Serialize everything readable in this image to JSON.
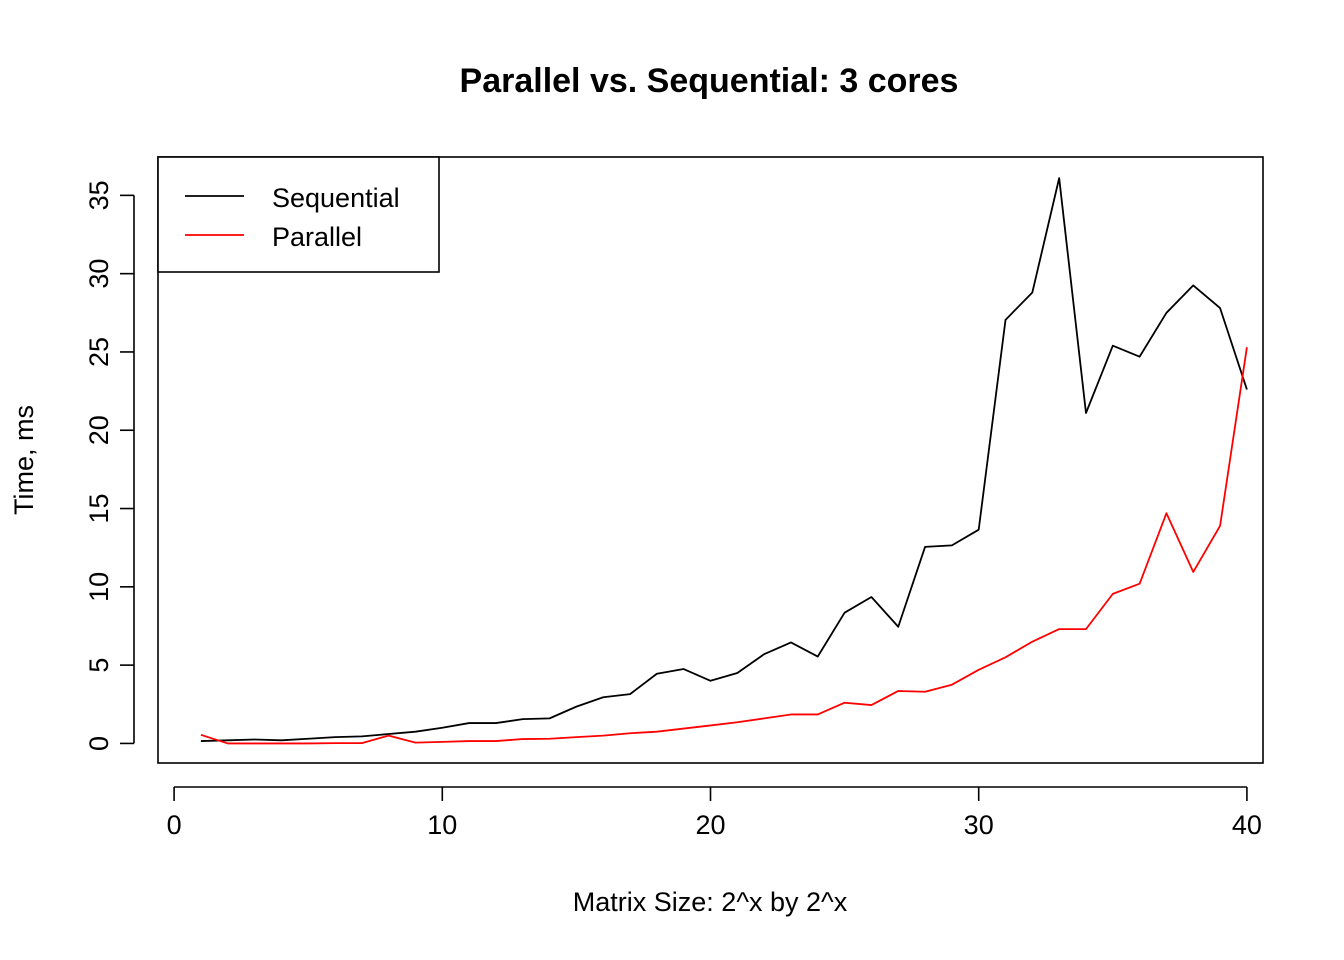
{
  "chart_data": {
    "type": "line",
    "title": "Parallel vs. Sequential: 3 cores",
    "xlabel": "Matrix Size: 2^x by 2^x",
    "ylabel": "Time, ms",
    "xlim": [
      -0.6,
      40.6
    ],
    "ylim": [
      -1.25,
      37.45
    ],
    "x_ticks": [
      0,
      10,
      20,
      30,
      40
    ],
    "y_ticks": [
      0,
      5,
      10,
      15,
      20,
      25,
      30,
      35
    ],
    "grid": false,
    "legend_position": "top-left",
    "x": [
      1,
      2,
      3,
      4,
      5,
      6,
      7,
      8,
      9,
      10,
      11,
      12,
      13,
      14,
      15,
      16,
      17,
      18,
      19,
      20,
      21,
      22,
      23,
      24,
      25,
      26,
      27,
      28,
      29,
      30,
      31,
      32,
      33,
      34,
      35,
      36,
      37,
      38,
      39,
      40
    ],
    "series": [
      {
        "name": "Sequential",
        "color": "#000000",
        "values": [
          0.15,
          0.2,
          0.25,
          0.2,
          0.3,
          0.4,
          0.45,
          0.6,
          0.75,
          1.0,
          1.3,
          1.3,
          1.55,
          1.6,
          2.35,
          2.95,
          3.15,
          4.45,
          4.75,
          4.0,
          4.5,
          5.7,
          6.45,
          5.55,
          8.35,
          9.35,
          7.45,
          12.55,
          12.65,
          13.65,
          27.05,
          28.8,
          36.1,
          21.1,
          25.4,
          24.7,
          27.5,
          29.25,
          27.8,
          22.6
        ]
      },
      {
        "name": "Parallel",
        "color": "#ff0000",
        "values": [
          0.55,
          0.0,
          0.0,
          0.0,
          0.0,
          0.02,
          0.02,
          0.5,
          0.05,
          0.1,
          0.15,
          0.15,
          0.28,
          0.3,
          0.4,
          0.5,
          0.65,
          0.75,
          0.95,
          1.15,
          1.35,
          1.6,
          1.85,
          1.85,
          2.6,
          2.45,
          3.35,
          3.3,
          3.75,
          4.7,
          5.5,
          6.5,
          7.3,
          7.3,
          9.55,
          10.2,
          14.7,
          10.95,
          13.9,
          25.3
        ]
      }
    ]
  }
}
